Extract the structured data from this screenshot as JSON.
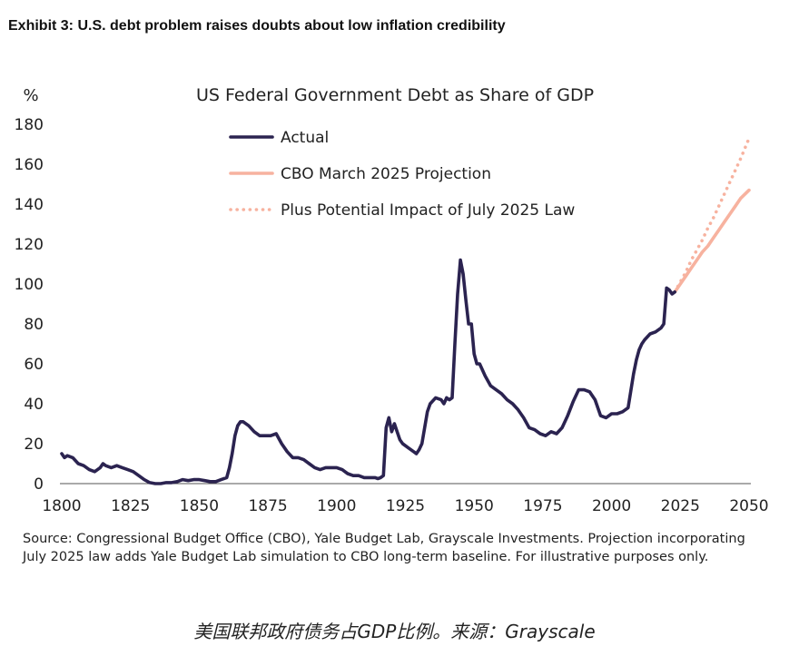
{
  "exhibit_title": "Exhibit 3: U.S. debt problem raises doubts about low inflation credibility",
  "source_note": "Source: Congressional Budget Office (CBO), Yale Budget Lab, Grayscale Investments. Projection incorporating July 2025 law adds Yale Budget Lab simulation to CBO long-term baseline. For illustrative purposes only.",
  "caption": "美国联邦政府债务占GDP比例。来源：Grayscale",
  "colors": {
    "actual": "#2b2350",
    "projection": "#f7b29f"
  },
  "chart_data": {
    "type": "line",
    "title": "US Federal Government Debt as Share of GDP",
    "ylabel": "%",
    "xlabel": "",
    "xlim": [
      1800,
      2050
    ],
    "ylim": [
      0,
      180
    ],
    "xticks": [
      1800,
      1825,
      1850,
      1875,
      1900,
      1925,
      1950,
      1975,
      2000,
      2025,
      2050
    ],
    "yticks": [
      0,
      20,
      40,
      60,
      80,
      100,
      120,
      140,
      160,
      180
    ],
    "grid": false,
    "legend_position": "top-center",
    "series": [
      {
        "name": "Actual",
        "style": "solid-dark",
        "x": [
          1800,
          1801,
          1802,
          1804,
          1806,
          1808,
          1810,
          1812,
          1814,
          1815,
          1816,
          1818,
          1820,
          1822,
          1824,
          1826,
          1828,
          1830,
          1832,
          1834,
          1836,
          1838,
          1840,
          1842,
          1844,
          1846,
          1848,
          1850,
          1852,
          1854,
          1856,
          1858,
          1860,
          1861,
          1862,
          1863,
          1864,
          1865,
          1866,
          1868,
          1870,
          1872,
          1874,
          1876,
          1878,
          1880,
          1882,
          1884,
          1886,
          1888,
          1890,
          1892,
          1894,
          1896,
          1898,
          1900,
          1902,
          1904,
          1906,
          1908,
          1910,
          1912,
          1914,
          1915,
          1916,
          1917,
          1918,
          1919,
          1920,
          1921,
          1922,
          1923,
          1924,
          1926,
          1928,
          1929,
          1930,
          1931,
          1932,
          1933,
          1934,
          1936,
          1938,
          1939,
          1940,
          1941,
          1942,
          1943,
          1944,
          1945,
          1946,
          1947,
          1948,
          1949,
          1950,
          1951,
          1952,
          1954,
          1956,
          1958,
          1960,
          1962,
          1964,
          1966,
          1968,
          1970,
          1972,
          1974,
          1976,
          1978,
          1980,
          1982,
          1984,
          1986,
          1988,
          1990,
          1992,
          1994,
          1996,
          1998,
          2000,
          2002,
          2004,
          2006,
          2008,
          2009,
          2010,
          2011,
          2012,
          2014,
          2016,
          2018,
          2019,
          2020,
          2021,
          2022,
          2023
        ],
        "y": [
          15,
          13,
          14,
          13,
          10,
          9,
          7,
          6,
          8,
          10,
          9,
          8,
          9,
          8,
          7,
          6,
          4,
          2,
          0.5,
          0,
          0,
          0.5,
          0.5,
          1,
          2,
          1.5,
          2,
          2,
          1.5,
          1,
          1,
          2,
          3,
          8,
          15,
          24,
          29,
          31,
          31,
          29,
          26,
          24,
          24,
          24,
          25,
          20,
          16,
          13,
          13,
          12,
          10,
          8,
          7,
          8,
          8,
          8,
          7,
          5,
          4,
          4,
          3,
          3,
          3,
          2.5,
          3,
          4,
          28,
          33,
          26,
          30,
          26,
          22,
          20,
          18,
          16,
          15,
          17,
          20,
          28,
          36,
          40,
          43,
          42,
          40,
          43,
          42,
          43,
          70,
          95,
          112,
          105,
          92,
          80,
          80,
          65,
          60,
          60,
          54,
          49,
          47,
          45,
          42,
          40,
          37,
          33,
          28,
          27,
          25,
          24,
          26,
          25,
          28,
          34,
          41,
          47,
          47,
          46,
          42,
          34,
          33,
          35,
          35,
          36,
          38,
          55,
          62,
          67,
          70,
          72,
          75,
          76,
          78,
          80,
          98,
          97,
          95,
          96
        ]
      },
      {
        "name": "CBO March 2025 Projection",
        "style": "solid-salmon",
        "x": [
          2023,
          2025,
          2027,
          2029,
          2031,
          2033,
          2035,
          2037,
          2039,
          2041,
          2043,
          2045,
          2047,
          2050
        ],
        "y": [
          96,
          100,
          104,
          108,
          112,
          116,
          119,
          123,
          127,
          131,
          135,
          139,
          143,
          147
        ]
      },
      {
        "name": "Plus Potential Impact of July 2025 Law",
        "style": "dotted-salmon",
        "x": [
          2023,
          2025,
          2027,
          2029,
          2031,
          2033,
          2035,
          2037,
          2039,
          2041,
          2043,
          2045,
          2047,
          2050
        ],
        "y": [
          96,
          101,
          106,
          112,
          117,
          122,
          128,
          133,
          139,
          145,
          151,
          157,
          163,
          173
        ]
      }
    ]
  }
}
